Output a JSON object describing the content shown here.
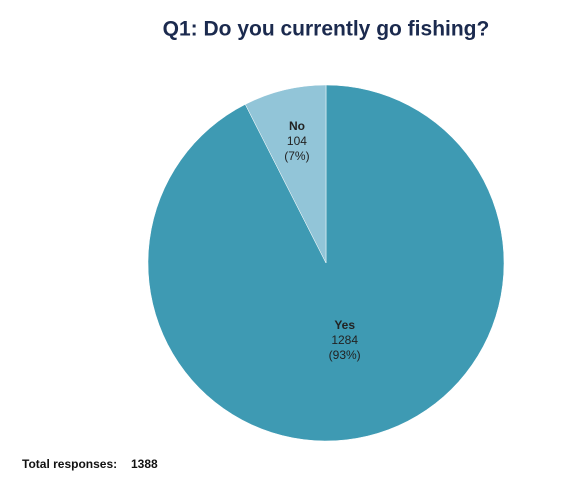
{
  "chart_data": {
    "type": "pie",
    "title": "Q1:  Do you currently go fishing?",
    "categories": [
      "Yes",
      "No"
    ],
    "values": [
      1284,
      104
    ],
    "percents": [
      93,
      7
    ],
    "percent_labels": [
      "(93%)",
      "(7%)"
    ],
    "colors": [
      "#3e9ab3",
      "#92c5d8"
    ],
    "total_label": "Total responses:",
    "total": 1388
  }
}
